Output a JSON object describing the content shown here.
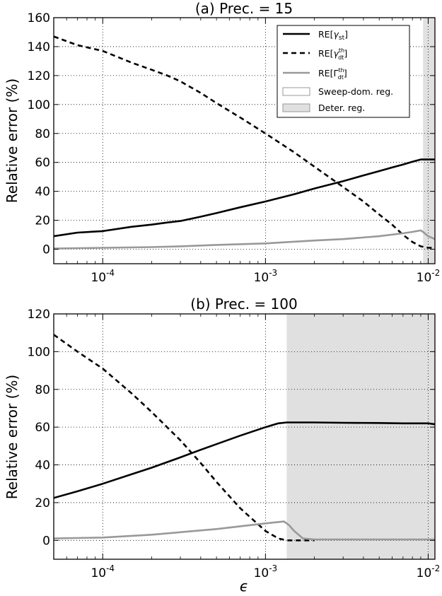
{
  "chart_data": [
    {
      "type": "line",
      "panel": "a",
      "title": "(a) Prec. = 15",
      "xlabel": "",
      "ylabel": "Relative error (%)",
      "xscale": "log",
      "xlim": [
        5e-05,
        0.011
      ],
      "ylim": [
        -10,
        160
      ],
      "yticks": [
        0,
        20,
        40,
        60,
        80,
        100,
        120,
        140,
        160
      ],
      "xticks": [
        0.0001,
        0.001,
        0.01
      ],
      "xtick_labels": [
        "10^-4",
        "10^-3",
        "10^-2"
      ],
      "grid": true,
      "legend": {
        "placement": "top-right",
        "entries": [
          "RE[γst]",
          "RE[γthdt]",
          "RE[Γthdt]",
          "Sweep-dom. reg.",
          "Deter. reg."
        ]
      },
      "regions": [
        {
          "name": "Deter. reg.",
          "x_start": 0.0093,
          "x_end": 0.011,
          "color": "#e0e0e0"
        }
      ],
      "series": [
        {
          "name": "RE[γst]",
          "style": "solid",
          "color": "#000000",
          "x": [
            5e-05,
            7e-05,
            0.0001,
            0.00015,
            0.0002,
            0.00025,
            0.0003,
            0.0004,
            0.0005,
            0.0007,
            0.001,
            0.0015,
            0.002,
            0.003,
            0.004,
            0.005,
            0.006,
            0.007,
            0.008,
            0.009,
            0.0093,
            0.011
          ],
          "y": [
            9,
            11.5,
            12.5,
            15.5,
            17,
            18.5,
            19.5,
            22.5,
            25,
            29,
            33,
            38,
            42,
            47,
            51,
            54,
            56.5,
            58.5,
            60.5,
            62,
            62,
            62
          ]
        },
        {
          "name": "RE[γthdt]",
          "style": "dashed",
          "color": "#000000",
          "x": [
            5e-05,
            7e-05,
            0.0001,
            0.00015,
            0.0002,
            0.00025,
            0.0003,
            0.0004,
            0.0005,
            0.0007,
            0.001,
            0.0015,
            0.002,
            0.003,
            0.004,
            0.005,
            0.006,
            0.007,
            0.008,
            0.009,
            0.01,
            0.011
          ],
          "y": [
            147,
            141,
            137,
            129,
            124,
            120,
            116,
            108,
            101,
            91,
            80,
            67,
            57,
            43,
            33,
            24,
            17,
            10,
            5,
            2,
            1,
            1
          ]
        },
        {
          "name": "RE[Γthdt]",
          "style": "solid",
          "color": "#999999",
          "x": [
            5e-05,
            0.0001,
            0.0002,
            0.0003,
            0.0005,
            0.001,
            0.002,
            0.003,
            0.005,
            0.007,
            0.008,
            0.009,
            0.0093,
            0.01,
            0.011
          ],
          "y": [
            0.5,
            1,
            1.5,
            2,
            3,
            4,
            6,
            7,
            9,
            11,
            12,
            13,
            12,
            9,
            7
          ]
        }
      ]
    },
    {
      "type": "line",
      "panel": "b",
      "title": "(b) Prec. = 100",
      "xlabel": "ϵ",
      "ylabel": "Relative error (%)",
      "xscale": "log",
      "xlim": [
        5e-05,
        0.011
      ],
      "ylim": [
        -10,
        120
      ],
      "yticks": [
        0,
        20,
        40,
        60,
        80,
        100,
        120
      ],
      "xticks": [
        0.0001,
        0.001,
        0.01
      ],
      "xtick_labels": [
        "10^-4",
        "10^-3",
        "10^-2"
      ],
      "grid": true,
      "regions": [
        {
          "name": "Deter. reg.",
          "x_start": 0.00135,
          "x_end": 0.011,
          "color": "#e0e0e0"
        }
      ],
      "series": [
        {
          "name": "RE[γst]",
          "style": "solid",
          "color": "#000000",
          "x": [
            5e-05,
            7e-05,
            0.0001,
            0.00015,
            0.0002,
            0.0003,
            0.0004,
            0.0005,
            0.0007,
            0.001,
            0.0012,
            0.00135,
            0.002,
            0.003,
            0.005,
            0.007,
            0.01,
            0.011
          ],
          "y": [
            22.5,
            26,
            30,
            35,
            38.5,
            44,
            48,
            51,
            55.5,
            60,
            62,
            62.5,
            62.5,
            62.3,
            62.2,
            62,
            62,
            61.5
          ]
        },
        {
          "name": "RE[γthdt]",
          "style": "dashed",
          "color": "#000000",
          "x": [
            5e-05,
            7e-05,
            0.0001,
            0.00015,
            0.0002,
            0.0003,
            0.0004,
            0.0005,
            0.0007,
            0.001,
            0.0012,
            0.00135,
            0.0016,
            0.002
          ],
          "y": [
            109,
            100,
            91,
            78,
            68,
            53,
            41,
            31,
            17,
            5,
            1,
            0,
            0,
            0
          ]
        },
        {
          "name": "RE[Γthdt]",
          "style": "solid",
          "color": "#999999",
          "x": [
            5e-05,
            0.0001,
            0.0002,
            0.0005,
            0.001,
            0.0013,
            0.0014,
            0.0015,
            0.0017,
            0.002,
            0.003,
            0.005,
            0.007,
            0.01,
            0.011
          ],
          "y": [
            1,
            1.5,
            3,
            6,
            9,
            10,
            8,
            5,
            1,
            0.5,
            0.5,
            0.5,
            0.5,
            0.5,
            0.5
          ]
        }
      ]
    }
  ]
}
